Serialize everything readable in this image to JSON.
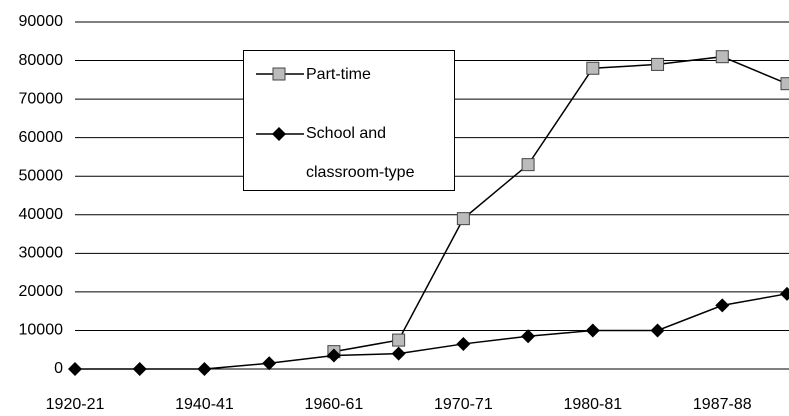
{
  "chart_data": {
    "type": "line",
    "categories": [
      "1920-21",
      null,
      "1940-41",
      null,
      "1960-61",
      null,
      "1970-71",
      null,
      "1980-81",
      null,
      "1987-88",
      null
    ],
    "series": [
      {
        "name": "Part-time",
        "color": "#000000",
        "marker": "square",
        "values": [
          null,
          null,
          null,
          null,
          4500,
          7500,
          39000,
          53000,
          78000,
          79000,
          81000,
          74000
        ]
      },
      {
        "name": "School and classroom-type",
        "color": "#000000",
        "marker": "diamond",
        "values": [
          0,
          0,
          0,
          1500,
          3500,
          4000,
          6500,
          8500,
          10000,
          10000,
          16500,
          19500
        ]
      }
    ],
    "ylim": [
      0,
      90000
    ],
    "yticks": [
      0,
      10000,
      20000,
      30000,
      40000,
      50000,
      60000,
      70000,
      80000,
      90000
    ],
    "grid": true
  }
}
